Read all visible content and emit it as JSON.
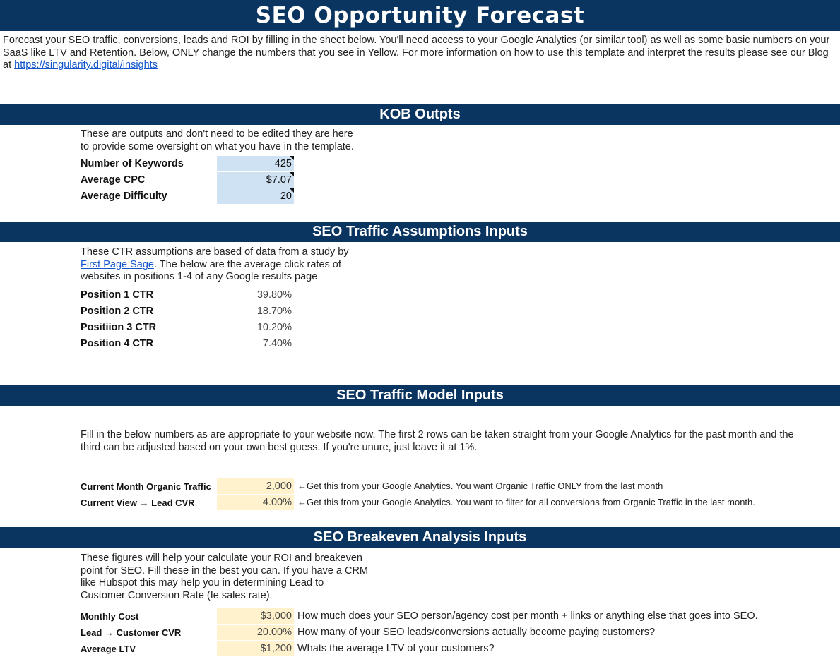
{
  "title": "SEO Opportunity Forecast",
  "intro": {
    "text": "Forecast your SEO traffic, conversions, leads and ROI by filling in the sheet below. You'll need access to your Google Analytics (or similar tool) as well as some basic numbers on your SaaS like LTV and Retention. Below, ONLY change the numbers that you see in Yellow. For more information on how to use this template and interpret the results please see our Blog at ",
    "link": "https://singularity.digital/insights"
  },
  "kob": {
    "header": "KOB Outpts",
    "desc_line1": "These are outputs and don't need to be edited they are here",
    "desc_line2": "to provide some oversight on what you have in the template.",
    "rows": [
      {
        "label": "Number of Keywords",
        "value": "425"
      },
      {
        "label": "Average CPC",
        "value": "$7.07"
      },
      {
        "label": "Average Difficulty",
        "value": "20"
      }
    ]
  },
  "ctr": {
    "header": "SEO Traffic Assumptions Inputs",
    "desc_line1": "These CTR assumptions are based of data from a study by",
    "desc_link": "First Page Sage",
    "desc_line2_rest": ". The below are the average click rates of",
    "desc_line3": "websites in positions 1-4 of any Google results page",
    "rows": [
      {
        "label": "Position 1 CTR",
        "value": "39.80%"
      },
      {
        "label": "Position 2 CTR",
        "value": "18.70%"
      },
      {
        "label": "Positiion 3 CTR",
        "value": "10.20%"
      },
      {
        "label": "Position 4 CTR",
        "value": "7.40%"
      }
    ]
  },
  "traffic": {
    "header": "SEO Traffic Model Inputs",
    "desc_line1": "Fill in the below numbers as are appropriate to your website now. The first 2 rows can be taken straight from your Google Analytics for the past month and the",
    "desc_line2": "third can be adjusted based on your own  best guess. If you're unure, just leave it at 1%.",
    "rows": [
      {
        "label": "Current Month Organic Traffic",
        "value": "2,000",
        "note": "←Get this from your Google Analytics. You want Organic Traffic ONLY from the last month"
      },
      {
        "label": "Current View → Lead CVR",
        "value": "4.00%",
        "note": "←Get this from your Google Analytics. You want to filter for all conversions from Organic Traffic in the last month."
      }
    ]
  },
  "breakeven": {
    "header": "SEO Breakeven Analysis Inputs",
    "desc_line1": "These figures will help your calculate your ROI and breakeven",
    "desc_line2": "point for SEO. Fill these in the best you can. If you have a CRM",
    "desc_line3": "like Hubspot this may help you in determining Lead to",
    "desc_line4": "Customer Conversion Rate (Ie sales rate).",
    "rows": [
      {
        "label": "Monthly Cost",
        "value": "$3,000",
        "note": "How much does your SEO person/agency cost per month + links or anything else that goes into SEO."
      },
      {
        "label": "Lead → Customer CVR",
        "value": "20.00%",
        "note": "How many of your SEO leads/conversions actually become paying customers?"
      },
      {
        "label": "Average LTV",
        "value": "$1,200",
        "note": "Whats the average LTV of your customers?"
      }
    ]
  }
}
